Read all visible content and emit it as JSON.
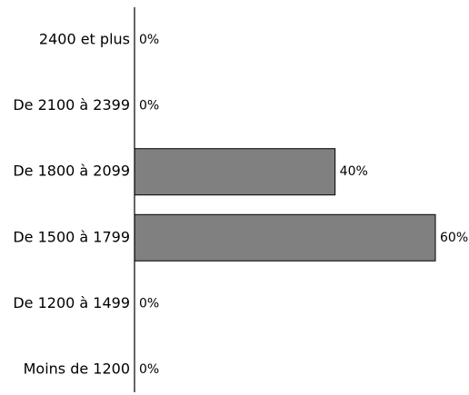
{
  "chart_data": {
    "type": "bar",
    "orientation": "horizontal",
    "categories": [
      "2400 et plus",
      "De 2100 à 2399",
      "De 1800 à 2099",
      "De 1500 à 1799",
      "De 1200 à 1499",
      "Moins de 1200"
    ],
    "values": [
      0,
      0,
      40,
      60,
      0,
      0
    ],
    "value_labels": [
      "0%",
      "0%",
      "40%",
      "60%",
      "0%",
      "0%"
    ],
    "xlim": [
      0,
      60
    ],
    "grid": false,
    "legend": "none",
    "bar_color": "#808080"
  }
}
